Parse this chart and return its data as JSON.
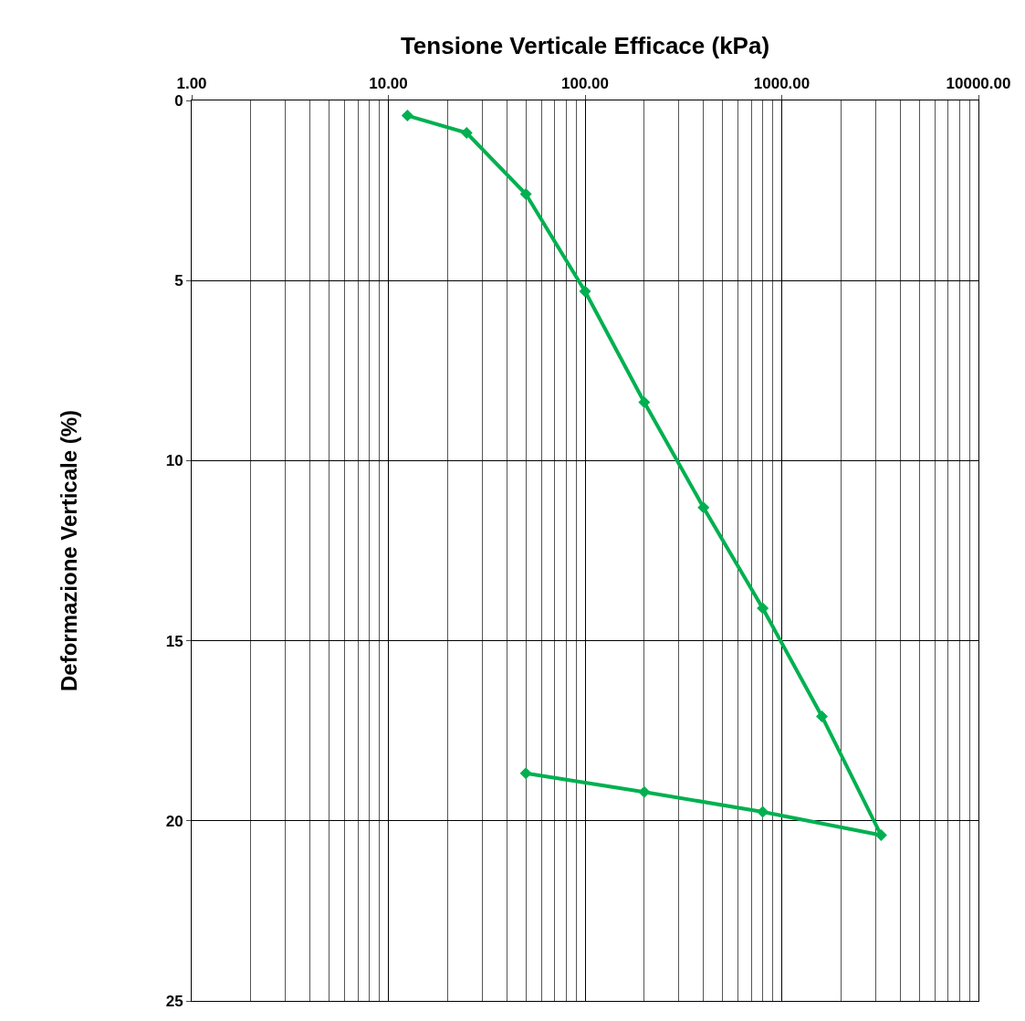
{
  "chart_data": {
    "type": "line",
    "xlabel": "Tensione Verticale Efficace (kPa)",
    "ylabel": "Deformazione Verticale (%)",
    "x": [
      12.5,
      25,
      50,
      100,
      200,
      400,
      800,
      1600,
      3200,
      800,
      200,
      50
    ],
    "series": [
      {
        "color": "#00b050",
        "values": [
          0.42,
          0.9,
          2.6,
          5.3,
          8.38,
          11.3,
          14.1,
          17.1,
          20.4,
          19.75,
          19.2,
          18.68
        ]
      }
    ],
    "log": "x",
    "xlim": [
      1,
      10000
    ],
    "xticks": [
      {
        "value": 1,
        "label": "1.00"
      },
      {
        "value": 10,
        "label": "10.00"
      },
      {
        "value": 100,
        "label": "100.00"
      },
      {
        "value": 1000,
        "label": "1000.00"
      },
      {
        "value": 10000,
        "label": "10000.00"
      }
    ],
    "ylim": [
      25,
      0
    ],
    "yticks": [
      0,
      5,
      10,
      15,
      20,
      25
    ],
    "grid": true,
    "legend": false,
    "marker": "diamond",
    "line_style": "solid"
  }
}
